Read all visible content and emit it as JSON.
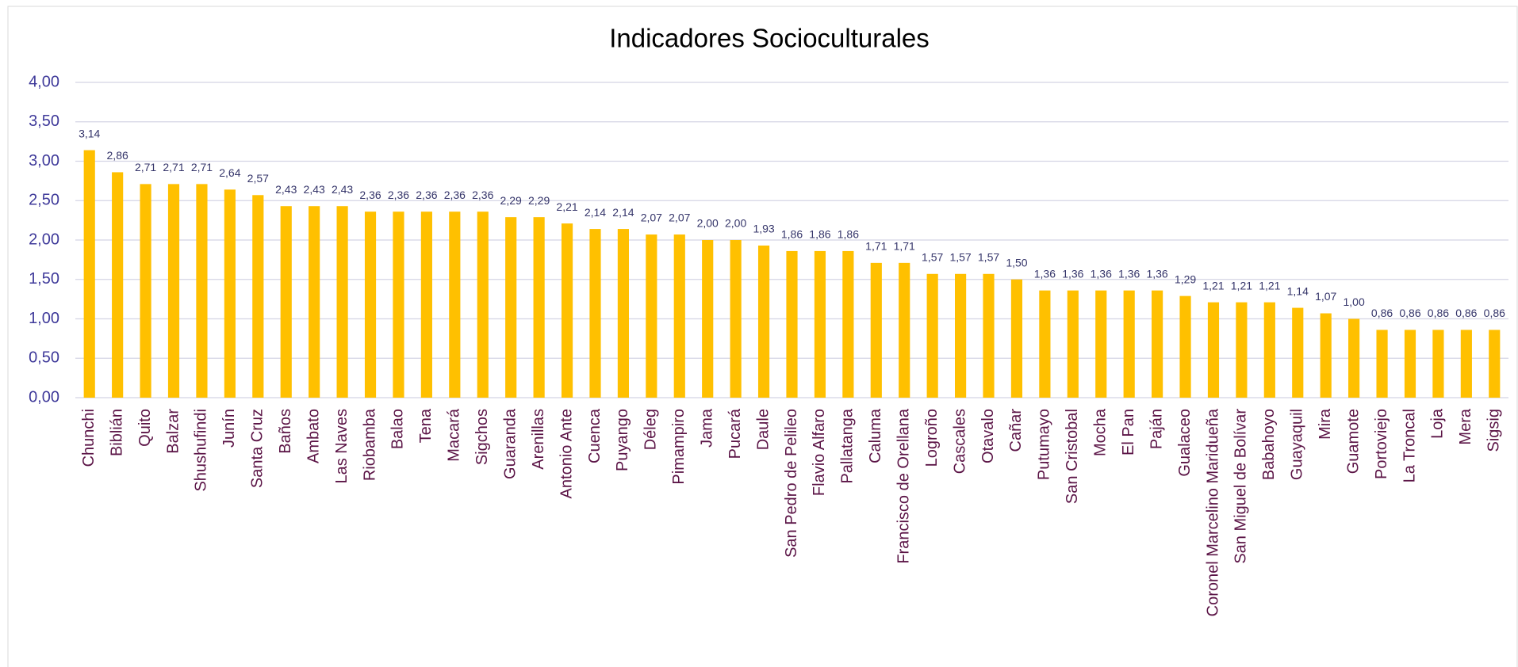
{
  "chart_data": {
    "type": "bar",
    "title": "Indicadores Socioculturales",
    "categories": [
      "Chunchi",
      "Biblián",
      "Quito",
      "Balzar",
      "Shushufindi",
      "Junín",
      "Santa Cruz",
      "Baños",
      "Ambato",
      "Las Naves",
      "Riobamba",
      "Balao",
      "Tena",
      "Macará",
      "Sigchos",
      "Guaranda",
      "Arenillas",
      "Antonio Ante",
      "Cuenca",
      "Puyango",
      "Déleg",
      "Pimampiro",
      "Jama",
      "Pucará",
      "Daule",
      "San Pedro de Pelileo",
      "Flavio Alfaro",
      "Pallatanga",
      "Caluma",
      "Francisco de Orellana",
      "Logroño",
      "Cascales",
      "Otavalo",
      "Cañar",
      "Putumayo",
      "San Cristobal",
      "Mocha",
      "El Pan",
      "Paján",
      "Gualaceo",
      "Coronel Marcelino Maridueña",
      "San Miguel de Bolívar",
      "Babahoyo",
      "Guayaquil",
      "Mira",
      "Guamote",
      "Portoviejo",
      "La Troncal",
      "Loja",
      "Mera",
      "Sigsig"
    ],
    "values": [
      3.14,
      2.86,
      2.71,
      2.71,
      2.71,
      2.64,
      2.57,
      2.43,
      2.43,
      2.43,
      2.36,
      2.36,
      2.36,
      2.36,
      2.36,
      2.29,
      2.29,
      2.21,
      2.14,
      2.14,
      2.07,
      2.07,
      2.0,
      2.0,
      1.93,
      1.86,
      1.86,
      1.86,
      1.71,
      1.71,
      1.57,
      1.57,
      1.57,
      1.5,
      1.36,
      1.36,
      1.36,
      1.36,
      1.36,
      1.29,
      1.21,
      1.21,
      1.21,
      1.14,
      1.07,
      1.0,
      0.86,
      0.86,
      0.86,
      0.86,
      0.86
    ],
    "value_labels": [
      "3,14",
      "2,86",
      "2,71",
      "2,71",
      "2,71",
      "2,64",
      "2,57",
      "2,43",
      "2,43",
      "2,43",
      "2,36",
      "2,36",
      "2,36",
      "2,36",
      "2,36",
      "2,29",
      "2,29",
      "2,21",
      "2,14",
      "2,14",
      "2,07",
      "2,07",
      "2,00",
      "2,00",
      "1,93",
      "1,86",
      "1,86",
      "1,86",
      "1,71",
      "1,71",
      "1,57",
      "1,57",
      "1,57",
      "1,50",
      "1,36",
      "1,36",
      "1,36",
      "1,36",
      "1,36",
      "1,29",
      "1,21",
      "1,21",
      "1,21",
      "1,14",
      "1,07",
      "1,00",
      "0,86",
      "0,86",
      "0,86",
      "0,86",
      "0,86"
    ],
    "color": "#FFC000",
    "ylim": [
      0,
      4
    ],
    "yticks": [
      {
        "value": 0,
        "label": "0,00"
      },
      {
        "value": 0.5,
        "label": "0,50"
      },
      {
        "value": 1,
        "label": "1,00"
      },
      {
        "value": 1.5,
        "label": "1,50"
      },
      {
        "value": 2,
        "label": "2,00"
      },
      {
        "value": 2.5,
        "label": "2,50"
      },
      {
        "value": 3,
        "label": "3,00"
      },
      {
        "value": 3.5,
        "label": "3,50"
      },
      {
        "value": 4,
        "label": "4,00"
      }
    ],
    "grid": true
  }
}
